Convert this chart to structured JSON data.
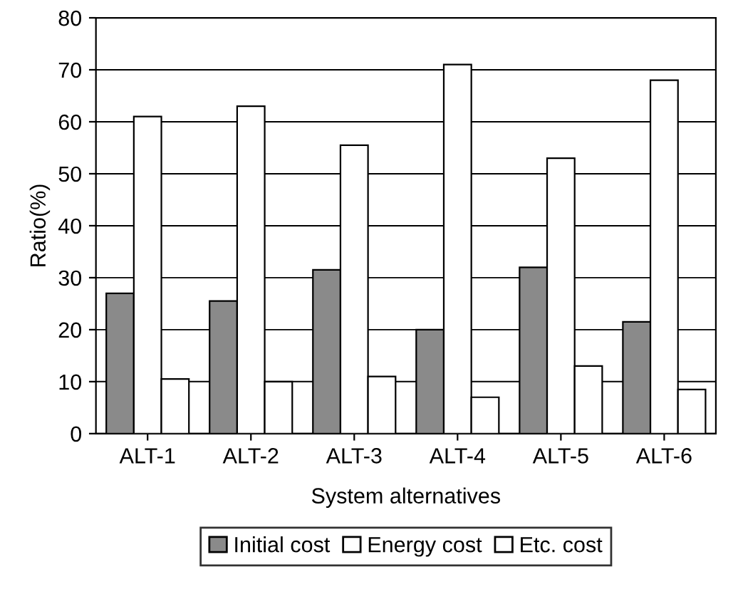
{
  "chart_data": {
    "type": "bar",
    "xlabel": "System alternatives",
    "ylabel": "Ratio(%)",
    "categories": [
      "ALT-1",
      "ALT-2",
      "ALT-3",
      "ALT-4",
      "ALT-5",
      "ALT-6"
    ],
    "series": [
      {
        "name": "Initial cost",
        "color": "#8a8a8a",
        "values": [
          27,
          25.5,
          31.5,
          20,
          32,
          21.5
        ]
      },
      {
        "name": "Energy cost",
        "color": "#ffffff",
        "values": [
          61,
          63,
          55.5,
          71,
          53,
          68
        ]
      },
      {
        "name": "Etc. cost",
        "color": "#ffffff",
        "values": [
          10.5,
          10,
          11,
          7,
          13,
          8.5
        ]
      }
    ],
    "ylim": [
      0,
      80
    ],
    "yticks": [
      0,
      10,
      20,
      30,
      40,
      50,
      60,
      70,
      80
    ],
    "grid": "y",
    "legend": "bottom"
  }
}
